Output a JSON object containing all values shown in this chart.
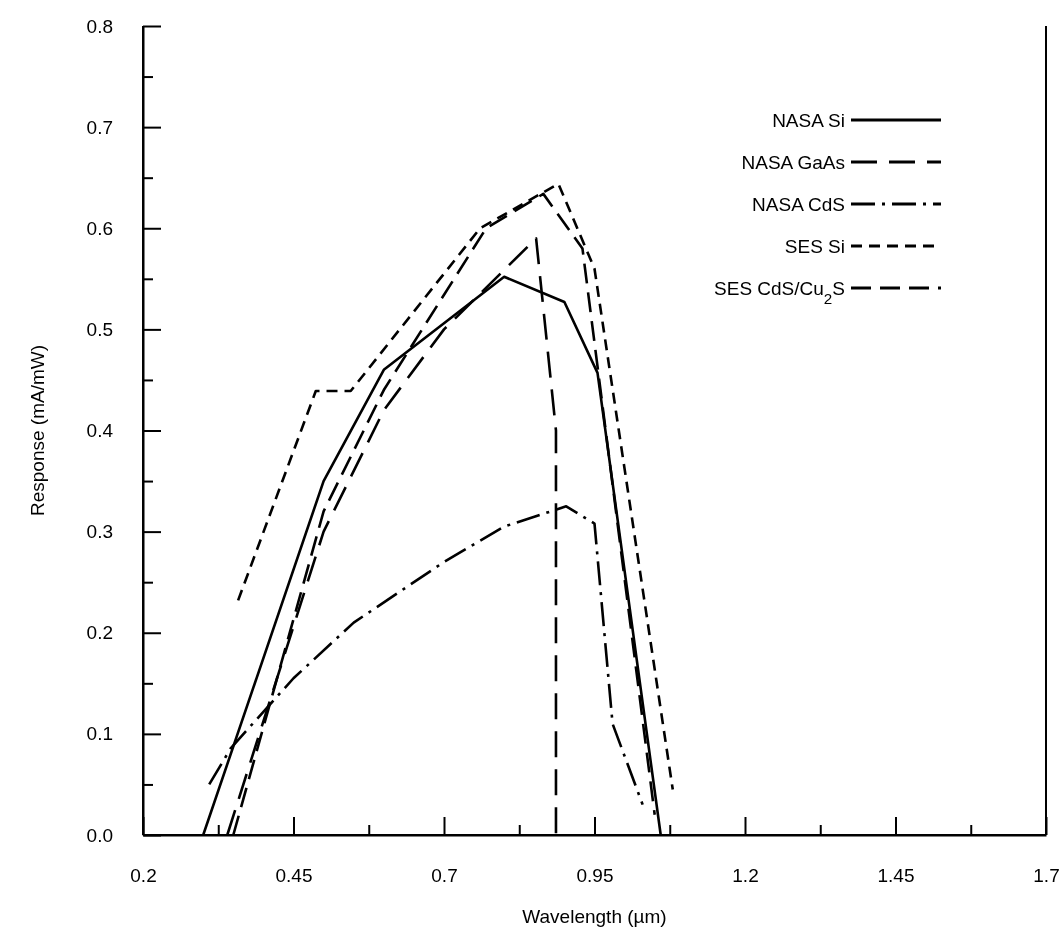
{
  "chart_data": {
    "type": "line",
    "xlabel": "Wavelength (µm)",
    "ylabel": "Response (mA/mW)",
    "xlim": [
      0.2,
      1.7
    ],
    "ylim": [
      0,
      0.8
    ],
    "xticks": [
      0.2,
      {
        "value": 0.325,
        "label": null
      },
      0.45,
      {
        "value": 0.575,
        "label": null
      },
      0.7,
      {
        "value": 0.825,
        "label": null
      },
      0.95,
      {
        "value": 1.075,
        "label": null
      },
      1.2,
      {
        "value": 1.325,
        "label": null
      },
      1.45,
      {
        "value": 1.575,
        "label": null
      },
      1.7
    ],
    "yticks": [
      {
        "value": 0,
        "label": "0.0"
      },
      {
        "value": 0.05,
        "label": null
      },
      0.1,
      {
        "value": 0.15,
        "label": null
      },
      0.2,
      {
        "value": 0.25,
        "label": null
      },
      0.3,
      {
        "value": 0.35,
        "label": null
      },
      0.4,
      {
        "value": 0.45,
        "label": null
      },
      0.5,
      {
        "value": 0.55,
        "label": null
      },
      0.6,
      {
        "value": 0.65,
        "label": null
      },
      0.7,
      {
        "value": 0.75,
        "label": null
      },
      0.8
    ],
    "grid": false,
    "legend": "top right",
    "marker": "none",
    "series": [
      {
        "name": "NASA Si",
        "color": "#000000",
        "line_style": "solid",
        "x": [
          0.3,
          0.5,
          0.6,
          0.8,
          0.9,
          0.955,
          1.06
        ],
        "values": [
          0,
          0.35,
          0.46,
          0.552,
          0.527,
          0.457,
          0
        ]
      },
      {
        "name": "NASA GaAs",
        "color": "#000000",
        "line_style": "longdash",
        "x": [
          0.34,
          0.5,
          0.6,
          0.7,
          0.853,
          0.886,
          0.886
        ],
        "values": [
          0,
          0.3,
          0.42,
          0.5,
          0.59,
          0.4,
          0
        ]
      },
      {
        "name": "NASA CdS",
        "color": "#000000",
        "line_style": "dashdot",
        "x": [
          0.31,
          0.346,
          0.45,
          0.55,
          0.7,
          0.8,
          0.903,
          0.95,
          0.98,
          1.03
        ],
        "values": [
          0.05,
          0.086,
          0.155,
          0.21,
          0.27,
          0.305,
          0.325,
          0.308,
          0.11,
          0.03
        ]
      },
      {
        "name": "SES Si",
        "color": "#000000",
        "line_style": "dashed",
        "x": [
          0.358,
          0.487,
          0.545,
          0.76,
          0.89,
          0.95,
          1.08
        ],
        "values": [
          0.232,
          0.439,
          0.439,
          0.6,
          0.644,
          0.56,
          0.045
        ]
      },
      {
        "name": "SES CdS/Cu$_{2}$S",
        "color": "#000000",
        "line_style": "dashed2",
        "x": [
          0.35,
          0.5,
          0.6,
          0.77,
          0.865,
          0.93,
          1.05
        ],
        "values": [
          0,
          0.32,
          0.44,
          0.6,
          0.634,
          0.58,
          0.02
        ]
      }
    ]
  }
}
